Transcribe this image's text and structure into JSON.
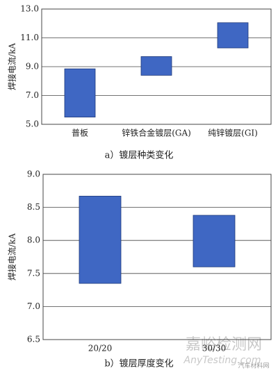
{
  "chart_data": [
    {
      "type": "floating_bar",
      "y_label": "焊接电流/kA",
      "caption": "a）镀层种类变化",
      "categories": [
        "普板",
        "锌铁合金镀层(GA)",
        "纯锌镀层(GI)"
      ],
      "values": [
        [
          5.5,
          8.85
        ],
        [
          8.4,
          9.7
        ],
        [
          10.3,
          12.05
        ]
      ],
      "color": "#3f67c3",
      "ylim": [
        5.0,
        13.0
      ],
      "yticks": [
        {
          "value": 5,
          "label": "5.0"
        },
        {
          "value": 7,
          "label": "7.0"
        },
        {
          "value": 9,
          "label": "9.0"
        },
        {
          "value": 11,
          "label": "11.0"
        },
        {
          "value": 13,
          "label": "13.0"
        }
      ],
      "grid": true
    },
    {
      "type": "floating_bar",
      "y_label": "焊接电流/kA",
      "caption": "b）镀层厚度变化",
      "categories": [
        "20/20",
        "30/30"
      ],
      "values": [
        [
          7.35,
          8.67
        ],
        [
          7.6,
          8.38
        ]
      ],
      "color": "#3f67c3",
      "ylim": [
        6.5,
        9.0
      ],
      "yticks": [
        6.5,
        {
          "value": 7,
          "label": "7.0"
        },
        7.5,
        {
          "value": 8,
          "label": "8.0"
        },
        8.5,
        {
          "value": 9,
          "label": "9.0"
        }
      ],
      "grid": true
    }
  ],
  "watermark": {
    "site": "嘉峪检测网",
    "url": "AnyTesting.com",
    "source": "汽车材料网"
  }
}
